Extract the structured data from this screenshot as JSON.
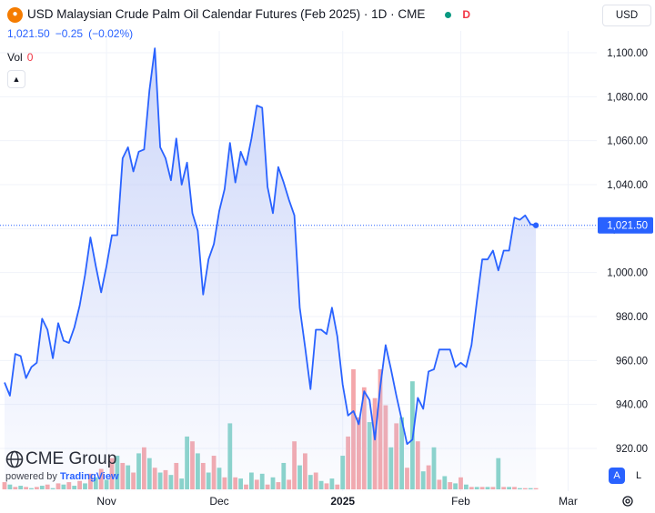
{
  "legend": {
    "title": "USD Malaysian Crude Palm Oil Calendar Futures (Feb 2025) · 1D · CME",
    "logo_icon": "oil-drop-icon",
    "status_color": "#089981",
    "d_badge": "D",
    "close": "1,021.50",
    "change": "−0.25",
    "change_pct": "(−0.02%)",
    "vol_label": "Vol",
    "vol_value": "0",
    "collapse_icon": "chevron-up-icon"
  },
  "currency": "USD",
  "watermark": {
    "brand": "CME Group",
    "powered": "powered by ",
    "tv": "TradingView",
    "icon": "globe-icon"
  },
  "controls": {
    "auto": "A",
    "log": "L",
    "settings_icon": "gear-icon"
  },
  "colors": {
    "line": "#2962ff",
    "area_top": "#bcc9f7",
    "vol_up": "#86d3c8",
    "vol_down": "#f4a7ab",
    "grid": "#f0f3fa",
    "axis_text": "#131722",
    "last_price_bg": "#2962ff"
  },
  "chart_data": {
    "type": "line",
    "title": "USD Malaysian Crude Palm Oil Calendar Futures (Feb 2025) · 1D · CME",
    "x_ticks": [
      {
        "label": "Nov",
        "date": "2024-11-01"
      },
      {
        "label": "Dec",
        "date": "2024-12-02"
      },
      {
        "label": "2025",
        "date": "2025-01-02",
        "bold": true
      },
      {
        "label": "Feb",
        "date": "2025-02-03"
      },
      {
        "label": "Mar",
        "date": "2025-03-03"
      }
    ],
    "y_ticks": [
      920,
      940,
      960,
      980,
      1000,
      1020,
      1040,
      1060,
      1080,
      1100
    ],
    "y_tick_labels": [
      "920.00",
      "940.00",
      "960.00",
      "980.00",
      "1,000.00",
      "1,020.00",
      "1,040.00",
      "1,060.00",
      "1,080.00",
      "1,100.00"
    ],
    "ylim": [
      910,
      1110
    ],
    "last_price": 1021.5,
    "last_price_label": "1,021.50",
    "grid": true,
    "series": [
      {
        "values": [
          [
            0,
            950
          ],
          [
            1,
            944
          ],
          [
            2,
            963
          ],
          [
            3,
            962
          ],
          [
            4,
            952
          ],
          [
            5,
            957
          ],
          [
            6,
            959
          ],
          [
            7,
            979
          ],
          [
            8,
            974
          ],
          [
            9,
            961
          ],
          [
            10,
            977
          ],
          [
            11,
            969
          ],
          [
            12,
            968
          ],
          [
            13,
            975
          ],
          [
            14,
            985
          ],
          [
            15,
            999
          ],
          [
            16,
            1016
          ],
          [
            17,
            1003
          ],
          [
            18,
            991
          ],
          [
            19,
            1003
          ],
          [
            20,
            1017
          ],
          [
            21,
            1017
          ],
          [
            22,
            1052
          ],
          [
            23,
            1057
          ],
          [
            24,
            1046
          ],
          [
            25,
            1055
          ],
          [
            26,
            1056
          ],
          [
            27,
            1083
          ],
          [
            28,
            1102
          ],
          [
            29,
            1057
          ],
          [
            30,
            1052
          ],
          [
            31,
            1042
          ],
          [
            32,
            1061
          ],
          [
            33,
            1040
          ],
          [
            34,
            1050
          ],
          [
            35,
            1027
          ],
          [
            36,
            1019
          ],
          [
            37,
            990
          ],
          [
            38,
            1006
          ],
          [
            39,
            1013
          ],
          [
            40,
            1028
          ],
          [
            41,
            1038
          ],
          [
            42,
            1059
          ],
          [
            43,
            1041
          ],
          [
            44,
            1055
          ],
          [
            45,
            1049
          ],
          [
            46,
            1061
          ],
          [
            47,
            1076
          ],
          [
            48,
            1075
          ],
          [
            49,
            1039
          ],
          [
            50,
            1027
          ],
          [
            51,
            1048
          ],
          [
            52,
            1041
          ],
          [
            53,
            1033
          ],
          [
            54,
            1026
          ],
          [
            55,
            984
          ],
          [
            56,
            966
          ],
          [
            57,
            947
          ],
          [
            58,
            974
          ],
          [
            59,
            974
          ],
          [
            60,
            972
          ],
          [
            61,
            984
          ],
          [
            62,
            971
          ],
          [
            63,
            949
          ],
          [
            64,
            935
          ],
          [
            65,
            937
          ],
          [
            66,
            931
          ],
          [
            67,
            946
          ],
          [
            68,
            942
          ],
          [
            69,
            924
          ],
          [
            70,
            948
          ],
          [
            71,
            967
          ],
          [
            72,
            956
          ],
          [
            73,
            944
          ],
          [
            74,
            933
          ],
          [
            75,
            922
          ],
          [
            76,
            924
          ],
          [
            77,
            943
          ],
          [
            78,
            938
          ],
          [
            79,
            955
          ],
          [
            80,
            956
          ],
          [
            81,
            965
          ],
          [
            82,
            965
          ],
          [
            83,
            965
          ],
          [
            84,
            957
          ],
          [
            85,
            959
          ],
          [
            86,
            957
          ],
          [
            87,
            967
          ],
          [
            88,
            987
          ],
          [
            89,
            1006
          ],
          [
            90,
            1006
          ],
          [
            91,
            1010
          ],
          [
            92,
            1001
          ],
          [
            93,
            1010
          ],
          [
            94,
            1010
          ],
          [
            95,
            1025
          ],
          [
            96,
            1024
          ],
          [
            97,
            1026
          ],
          [
            98,
            1022
          ],
          [
            99,
            1021.5
          ]
        ]
      }
    ],
    "volume": [
      [
        0,
        6,
        "d"
      ],
      [
        1,
        4,
        "u"
      ],
      [
        2,
        2,
        "d"
      ],
      [
        3,
        3,
        "u"
      ],
      [
        4,
        2,
        "d"
      ],
      [
        5,
        1,
        "u"
      ],
      [
        6,
        2,
        "d"
      ],
      [
        7,
        3,
        "u"
      ],
      [
        8,
        4,
        "d"
      ],
      [
        9,
        1,
        "u"
      ],
      [
        10,
        5,
        "d"
      ],
      [
        11,
        4,
        "u"
      ],
      [
        12,
        6,
        "d"
      ],
      [
        13,
        3,
        "u"
      ],
      [
        14,
        7,
        "d"
      ],
      [
        15,
        5,
        "u"
      ],
      [
        16,
        13,
        "d"
      ],
      [
        17,
        10,
        "u"
      ],
      [
        18,
        17,
        "d"
      ],
      [
        19,
        8,
        "u"
      ],
      [
        20,
        26,
        "d"
      ],
      [
        21,
        28,
        "u"
      ],
      [
        22,
        22,
        "d"
      ],
      [
        23,
        20,
        "u"
      ],
      [
        24,
        14,
        "d"
      ],
      [
        25,
        30,
        "u"
      ],
      [
        26,
        35,
        "d"
      ],
      [
        27,
        26,
        "u"
      ],
      [
        28,
        18,
        "d"
      ],
      [
        29,
        14,
        "u"
      ],
      [
        30,
        16,
        "d"
      ],
      [
        31,
        12,
        "u"
      ],
      [
        32,
        22,
        "d"
      ],
      [
        33,
        9,
        "u"
      ],
      [
        34,
        44,
        "u"
      ],
      [
        35,
        40,
        "d"
      ],
      [
        36,
        30,
        "u"
      ],
      [
        37,
        22,
        "d"
      ],
      [
        38,
        14,
        "u"
      ],
      [
        39,
        28,
        "d"
      ],
      [
        40,
        18,
        "u"
      ],
      [
        41,
        10,
        "d"
      ],
      [
        42,
        55,
        "u"
      ],
      [
        43,
        10,
        "d"
      ],
      [
        44,
        9,
        "u"
      ],
      [
        45,
        4,
        "d"
      ],
      [
        46,
        14,
        "u"
      ],
      [
        47,
        8,
        "d"
      ],
      [
        48,
        13,
        "u"
      ],
      [
        49,
        4,
        "d"
      ],
      [
        50,
        10,
        "u"
      ],
      [
        51,
        6,
        "d"
      ],
      [
        52,
        22,
        "u"
      ],
      [
        53,
        8,
        "d"
      ],
      [
        54,
        40,
        "d"
      ],
      [
        55,
        20,
        "u"
      ],
      [
        56,
        30,
        "d"
      ],
      [
        57,
        12,
        "u"
      ],
      [
        58,
        14,
        "d"
      ],
      [
        59,
        7,
        "u"
      ],
      [
        60,
        5,
        "d"
      ],
      [
        61,
        9,
        "u"
      ],
      [
        62,
        4,
        "d"
      ],
      [
        63,
        28,
        "u"
      ],
      [
        64,
        44,
        "d"
      ],
      [
        65,
        100,
        "d"
      ],
      [
        66,
        60,
        "d"
      ],
      [
        67,
        85,
        "d"
      ],
      [
        68,
        56,
        "u"
      ],
      [
        69,
        76,
        "d"
      ],
      [
        70,
        100,
        "d"
      ],
      [
        71,
        70,
        "d"
      ],
      [
        72,
        35,
        "u"
      ],
      [
        73,
        55,
        "d"
      ],
      [
        74,
        60,
        "u"
      ],
      [
        75,
        18,
        "d"
      ],
      [
        76,
        90,
        "u"
      ],
      [
        77,
        40,
        "d"
      ],
      [
        78,
        15,
        "u"
      ],
      [
        79,
        20,
        "d"
      ],
      [
        80,
        35,
        "u"
      ],
      [
        81,
        8,
        "d"
      ],
      [
        82,
        11,
        "u"
      ],
      [
        83,
        6,
        "d"
      ],
      [
        84,
        5,
        "u"
      ],
      [
        85,
        10,
        "d"
      ],
      [
        86,
        4,
        "u"
      ],
      [
        87,
        2,
        "d"
      ],
      [
        88,
        2,
        "u"
      ],
      [
        89,
        2,
        "d"
      ],
      [
        90,
        2,
        "u"
      ],
      [
        91,
        2,
        "d"
      ],
      [
        92,
        26,
        "u"
      ],
      [
        93,
        2,
        "d"
      ],
      [
        94,
        2,
        "u"
      ],
      [
        95,
        2,
        "d"
      ],
      [
        96,
        1,
        "u"
      ],
      [
        97,
        1,
        "d"
      ],
      [
        98,
        1,
        "u"
      ],
      [
        99,
        1,
        "d"
      ]
    ]
  }
}
